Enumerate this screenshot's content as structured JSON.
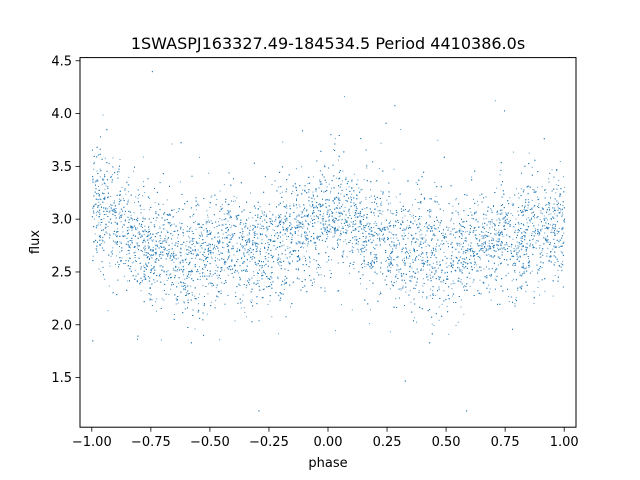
{
  "chart_data": {
    "type": "scatter",
    "title": "1SWASPJ163327.49-184534.5 Period 4410386.0s",
    "xlabel": "phase",
    "ylabel": "flux",
    "xlim": [
      -1.05,
      1.05
    ],
    "ylim": [
      1.03,
      4.53
    ],
    "x_ticks": [
      -1.0,
      -0.75,
      -0.5,
      -0.25,
      0.0,
      0.25,
      0.5,
      0.75,
      1.0
    ],
    "x_tick_labels": [
      "−1.00",
      "−0.75",
      "−0.50",
      "−0.25",
      "0.00",
      "0.25",
      "0.50",
      "0.75",
      "1.00"
    ],
    "y_ticks": [
      1.5,
      2.0,
      2.5,
      3.0,
      3.5,
      4.0,
      4.5
    ],
    "y_tick_labels": [
      "1.5",
      "2.0",
      "2.5",
      "3.0",
      "3.5",
      "4.0",
      "4.5"
    ],
    "grid": false,
    "point_color": "#1f77b4",
    "series": [
      {
        "values_description_profile": {
          "phase": [
            -1.0,
            -0.9,
            -0.8,
            -0.7,
            -0.6,
            -0.5,
            -0.4,
            -0.3,
            -0.2,
            -0.1,
            0.0,
            0.1,
            0.2,
            0.3,
            0.4,
            0.5,
            0.6,
            0.7,
            0.8,
            0.9,
            1.0
          ],
          "median_flux": [
            3.2,
            2.95,
            2.8,
            2.72,
            2.65,
            2.7,
            2.75,
            2.72,
            2.8,
            2.85,
            3.1,
            2.95,
            2.85,
            2.75,
            2.68,
            2.68,
            2.75,
            2.78,
            2.82,
            2.85,
            2.95
          ],
          "spread": [
            0.35,
            0.3,
            0.32,
            0.3,
            0.35,
            0.32,
            0.3,
            0.3,
            0.33,
            0.3,
            0.35,
            0.3,
            0.3,
            0.3,
            0.35,
            0.32,
            0.3,
            0.3,
            0.33,
            0.32,
            0.33
          ]
        }
      }
    ]
  }
}
